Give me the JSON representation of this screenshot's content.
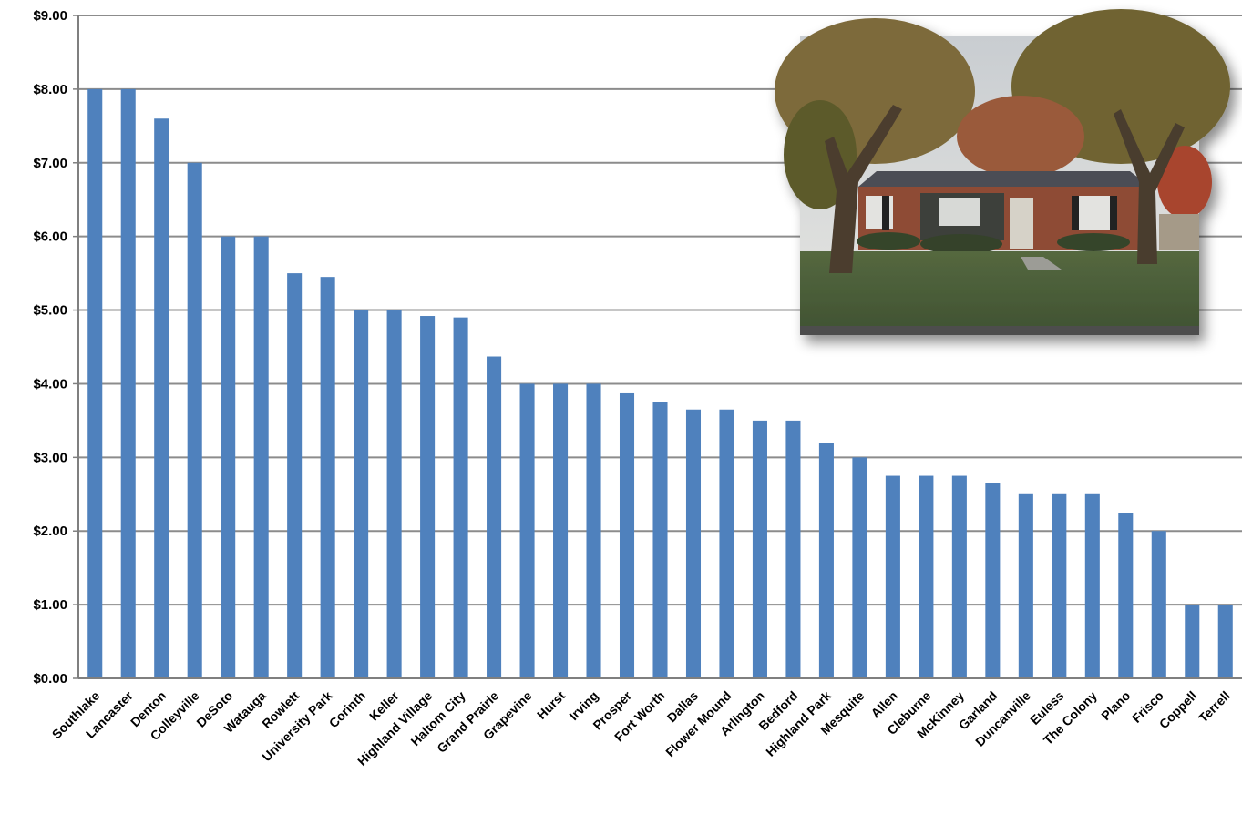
{
  "chart_data": {
    "type": "bar",
    "title": "",
    "xlabel": "",
    "ylabel": "",
    "ylim": [
      0,
      9
    ],
    "y_tick_labels": [
      "$0.00",
      "$1.00",
      "$2.00",
      "$3.00",
      "$4.00",
      "$5.00",
      "$6.00",
      "$7.00",
      "$8.00",
      "$9.00"
    ],
    "grid": true,
    "legend": "none",
    "categories": [
      "Southlake",
      "Lancaster",
      "Denton",
      "Colleyville",
      "DeSoto",
      "Watauga",
      "Rowlett",
      "University Park",
      "Corinth",
      "Keller",
      "Highland Village",
      "Haltom City",
      "Grand Prairie",
      "Grapevine",
      "Hurst",
      "Irving",
      "Prosper",
      "Fort Worth",
      "Dallas",
      "Flower Mound",
      "Arlington",
      "Bedford",
      "Highland Park",
      "Mesquite",
      "Allen",
      "Cleburne",
      "McKinney",
      "Garland",
      "Duncanville",
      "Euless",
      "The Colony",
      "Plano",
      "Frisco",
      "Coppell",
      "Terrell"
    ],
    "values": [
      8.0,
      8.0,
      7.6,
      7.0,
      6.0,
      6.0,
      5.5,
      5.45,
      5.0,
      5.0,
      4.92,
      4.9,
      4.37,
      4.0,
      4.0,
      4.0,
      3.87,
      3.75,
      3.65,
      3.65,
      3.5,
      3.5,
      3.2,
      3.0,
      2.75,
      2.75,
      2.75,
      2.65,
      2.5,
      2.5,
      2.5,
      2.25,
      2.0,
      1.0,
      1.0
    ],
    "colors": {
      "bar": "#4f81bd",
      "grid": "#8c8c8c",
      "axis": "#7f7f7f"
    }
  },
  "inset_photo": {
    "description_icon": "house-photo"
  }
}
